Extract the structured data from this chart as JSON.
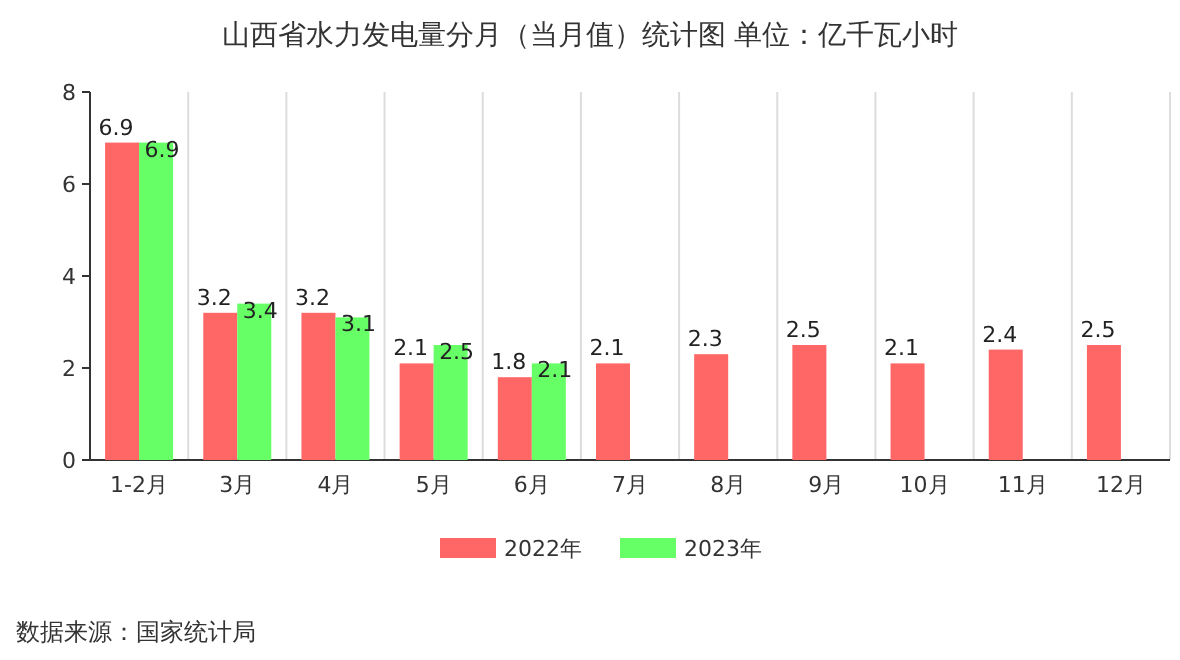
{
  "chart_data": {
    "type": "bar",
    "title": "山西省水力发电量分月（当月值）统计图 单位：亿千瓦小时",
    "categories": [
      "1-2月",
      "3月",
      "4月",
      "5月",
      "6月",
      "7月",
      "8月",
      "9月",
      "10月",
      "11月",
      "12月"
    ],
    "series": [
      {
        "name": "2022年",
        "color": "#ff6666",
        "values": [
          6.9,
          3.2,
          3.2,
          2.1,
          1.8,
          2.1,
          2.3,
          2.5,
          2.1,
          2.4,
          2.5
        ]
      },
      {
        "name": "2023年",
        "color": "#66ff66",
        "values": [
          6.9,
          3.4,
          3.1,
          2.5,
          2.1,
          null,
          null,
          null,
          null,
          null,
          null
        ]
      }
    ],
    "ylim": [
      0,
      8
    ],
    "yticks": [
      0,
      2,
      4,
      6,
      8
    ],
    "grid": "x",
    "legend": "bottom",
    "data_labels": true,
    "annotations": [
      "数据来源：国家统计局"
    ]
  }
}
